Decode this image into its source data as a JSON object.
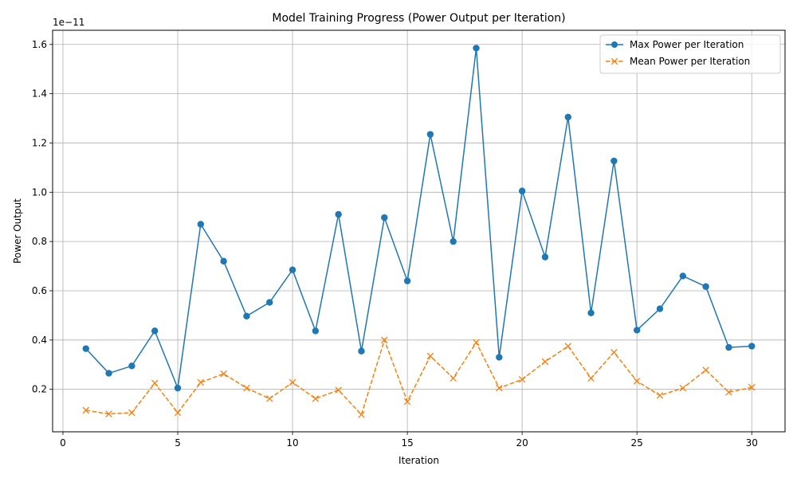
{
  "chart_data": {
    "type": "line",
    "title": "Model Training Progress (Power Output per Iteration)",
    "xlabel": "Iteration",
    "ylabel": "Power Output",
    "y_offset_text": "1e−11",
    "y_scale_exponent": -11,
    "xlim": [
      -0.45,
      31.45
    ],
    "ylim": [
      0.0275,
      1.6575
    ],
    "x_ticks": [
      0,
      5,
      10,
      15,
      20,
      25,
      30
    ],
    "x_tick_labels": [
      "0",
      "5",
      "10",
      "15",
      "20",
      "25",
      "30"
    ],
    "y_ticks": [
      0.2,
      0.4,
      0.6,
      0.8,
      1.0,
      1.2,
      1.4,
      1.6
    ],
    "y_tick_labels": [
      "0.2",
      "0.4",
      "0.6",
      "0.8",
      "1.0",
      "1.2",
      "1.4",
      "1.6"
    ],
    "grid": true,
    "legend_position": "top-right",
    "x": [
      1,
      2,
      3,
      4,
      5,
      6,
      7,
      8,
      9,
      10,
      11,
      12,
      13,
      14,
      15,
      16,
      17,
      18,
      19,
      20,
      21,
      22,
      23,
      24,
      25,
      26,
      27,
      28,
      29,
      30
    ],
    "series": [
      {
        "name": "Max Power per Iteration",
        "color": "#1f77b4",
        "marker": "circle",
        "line_style": "solid",
        "values": [
          0.365,
          0.265,
          0.295,
          0.437,
          0.205,
          0.87,
          0.72,
          0.497,
          0.553,
          0.685,
          0.437,
          0.91,
          0.355,
          0.897,
          0.64,
          1.235,
          0.8,
          1.585,
          0.33,
          1.005,
          0.737,
          1.305,
          0.51,
          1.127,
          0.44,
          0.527,
          0.66,
          0.617,
          0.37,
          0.375
        ]
      },
      {
        "name": "Mean Power per Iteration",
        "color": "#ff7f0e",
        "marker": "x",
        "line_style": "dashed",
        "values": [
          0.115,
          0.1,
          0.105,
          0.225,
          0.105,
          0.228,
          0.263,
          0.205,
          0.162,
          0.228,
          0.162,
          0.197,
          0.097,
          0.4,
          0.15,
          0.335,
          0.245,
          0.39,
          0.205,
          0.24,
          0.312,
          0.375,
          0.245,
          0.35,
          0.233,
          0.175,
          0.205,
          0.278,
          0.188,
          0.208
        ]
      }
    ]
  }
}
